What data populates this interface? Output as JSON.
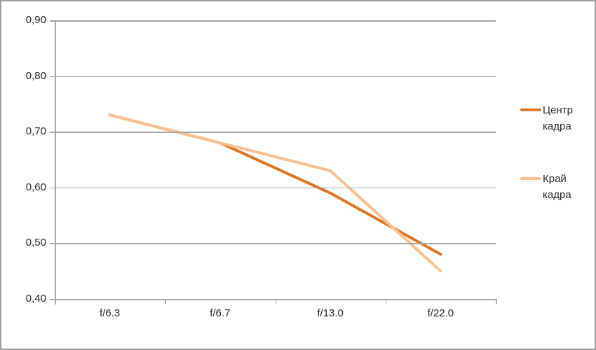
{
  "window": {
    "background": "#ffffff",
    "border_color": "#9e9e9e"
  },
  "chart_data": {
    "type": "line",
    "title": "",
    "xlabel": "",
    "ylabel": "",
    "categories": [
      "f/6.3",
      "f/6.7",
      "f/13.0",
      "f/22.0"
    ],
    "series": [
      {
        "name": "Центр кадра",
        "values": [
          0.73,
          0.68,
          0.59,
          0.48
        ],
        "color": "#dd7527"
      },
      {
        "name": "Край кадра",
        "values": [
          0.73,
          0.68,
          0.63,
          0.45
        ],
        "color": "#fac090"
      }
    ],
    "ylim": [
      0.4,
      0.9
    ],
    "ytick_step": 0.1,
    "ytick_labels": [
      "0,90",
      "0,80",
      "0,70",
      "0,60",
      "0,50",
      "0,40"
    ],
    "decimal_separator": ",",
    "grid": true,
    "legend_position": "right",
    "colors": {
      "gridline": "#a6a6a6",
      "axis": "#a6a6a6",
      "text": "#262626"
    }
  }
}
